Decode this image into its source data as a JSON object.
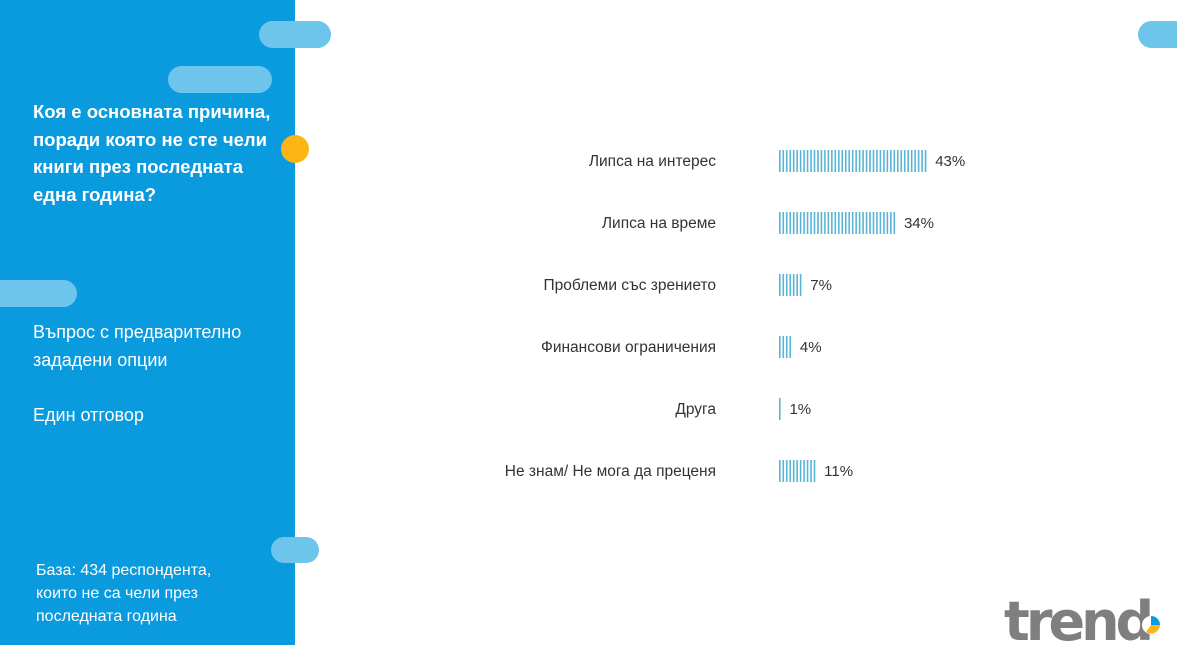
{
  "sidebar": {
    "question": "Коя е основната причина,\nпоради която не сте чели\nкниги през последната\nедна година?",
    "question_type": "Въпрос с предварително\nзададени опции",
    "answer_type": "Един отговор",
    "base_note": "База:  434 респондента,\nкоито не са чели през\nпоследната година"
  },
  "chart_data": {
    "type": "bar",
    "orientation": "horizontal",
    "categories": [
      "Липса на интерес",
      "Липса на време",
      "Проблеми със зрението",
      "Финансови ограничения",
      "Друга",
      "Не знам/ Не мога да преценя"
    ],
    "values": [
      43,
      34,
      7,
      4,
      1,
      11
    ],
    "value_labels": [
      "43%",
      "34%",
      "7%",
      "4%",
      "1%",
      "11%"
    ],
    "unit": "%",
    "xlim": [
      0,
      100
    ],
    "grid": false,
    "legend": "none",
    "bar_color": "#5ab4d6"
  },
  "logo": {
    "text": "trend"
  },
  "colors": {
    "sidebar": "#0a9ade",
    "pill": "#6ec5ec",
    "dot": "#fdb515",
    "bar": "#5ab4d6",
    "logo_text": "#7f7f7f"
  }
}
